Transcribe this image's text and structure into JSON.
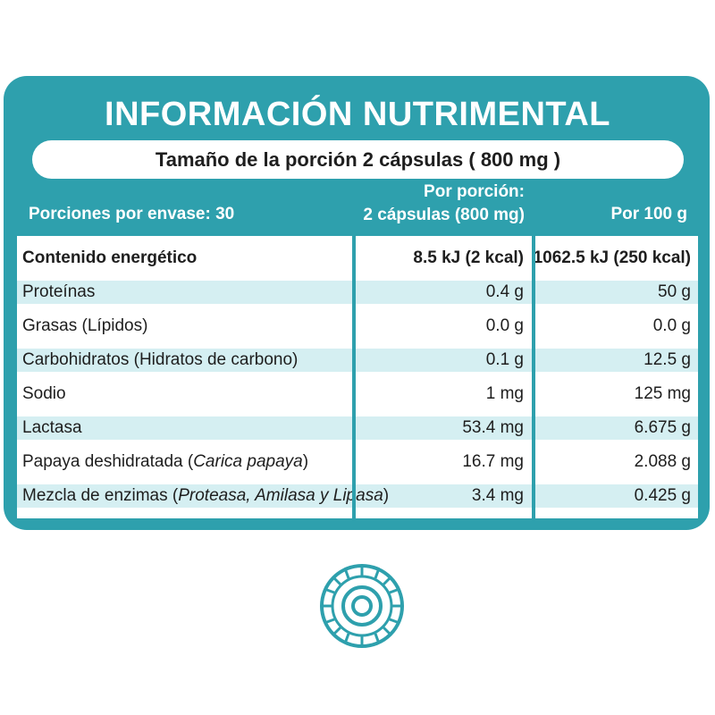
{
  "title": "INFORMACIÓN NUTRIMENTAL",
  "serving_size": "Tamaño de la porción 2 cápsulas ( 800 mg )",
  "headers": {
    "portions": "Porciones por envase: 30",
    "per_portion_line1": "Por porción:",
    "per_portion_line2": "2 cápsulas (800 mg)",
    "per_100g": "Por 100 g"
  },
  "rows": [
    {
      "name": "Contenido energético",
      "per_portion": "8.5 kJ (2 kcal)",
      "per_100g": "1062.5 kJ (250 kcal)"
    },
    {
      "name": "Proteínas",
      "per_portion": "0.4 g",
      "per_100g": "50 g"
    },
    {
      "name": "Grasas (Lípidos)",
      "per_portion": "0.0 g",
      "per_100g": "0.0 g"
    },
    {
      "name": "Carbohidratos (Hidratos de carbono)",
      "per_portion": "0.1 g",
      "per_100g": "12.5 g"
    },
    {
      "name": "Sodio",
      "per_portion": "1 mg",
      "per_100g": "125 mg"
    },
    {
      "name": "Lactasa",
      "per_portion": "53.4 mg",
      "per_100g": "6.675 g"
    },
    {
      "name": "Papaya deshidratada",
      "name_italic": "Carica papaya",
      "per_portion": "16.7 mg",
      "per_100g": "2.088 g"
    },
    {
      "name": "Mezcla de enzimas",
      "name_italic": "Proteasa, Amilasa y Lipasa",
      "per_portion": "3.4 mg",
      "per_100g": "0.425 g"
    }
  ],
  "colors": {
    "teal": "#2ea0ad",
    "row_shade": "#d5eff2",
    "text": "#1e1e1e"
  },
  "logo_icon": "circular-emblem-icon"
}
